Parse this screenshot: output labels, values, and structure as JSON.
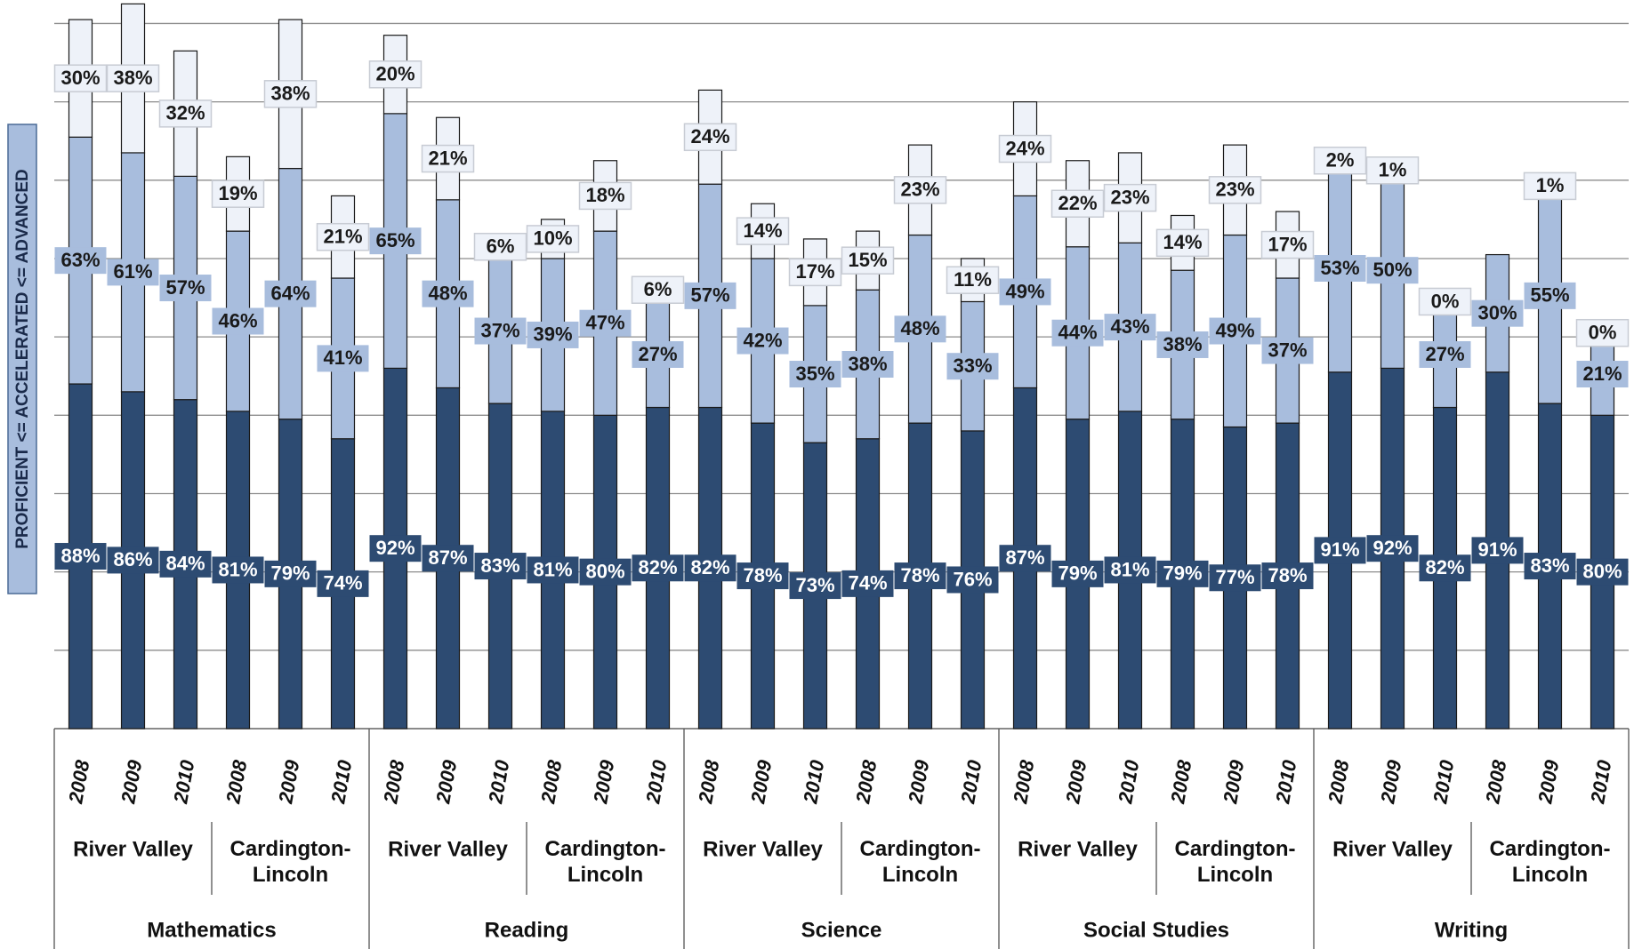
{
  "chart_data": {
    "type": "stacked_bar",
    "y_axis_label": "PROFICIENT <= ACCELERATED <= ADVANCED",
    "categories": [
      "2008",
      "2009",
      "2010",
      "2008",
      "2009",
      "2010",
      "2008",
      "2009",
      "2010",
      "2008",
      "2009",
      "2010",
      "2008",
      "2009",
      "2010",
      "2008",
      "2009",
      "2010",
      "2008",
      "2009",
      "2010",
      "2008",
      "2009",
      "2010",
      "2008",
      "2009",
      "2010",
      "2008",
      "2009",
      "2010"
    ],
    "schools": [
      "River Valley",
      "Cardington-Lincoln",
      "River Valley",
      "Cardington-Lincoln",
      "River Valley",
      "Cardington-Lincoln",
      "River Valley",
      "Cardington-Lincoln",
      "River Valley",
      "Cardington-Lincoln"
    ],
    "subjects": [
      "Mathematics",
      "Reading",
      "Science",
      "Social Studies",
      "Writing"
    ],
    "series": [
      {
        "color": "#2d4b72",
        "label_color": "#ffffff",
        "values": [
          88,
          86,
          84,
          81,
          79,
          74,
          92,
          87,
          83,
          81,
          80,
          82,
          82,
          78,
          73,
          74,
          78,
          76,
          87,
          79,
          81,
          79,
          77,
          78,
          91,
          92,
          82,
          91,
          83,
          80
        ],
        "value_labels": [
          "88%",
          "86%",
          "84%",
          "81%",
          "79%",
          "74%",
          "92%",
          "87%",
          "83%",
          "81%",
          "80%",
          "82%",
          "82%",
          "78%",
          "73%",
          "74%",
          "78%",
          "76%",
          "87%",
          "79%",
          "81%",
          "79%",
          "77%",
          "78%",
          "91%",
          "92%",
          "82%",
          "91%",
          "83%",
          "80%"
        ]
      },
      {
        "color": "#a8bddd",
        "label_color": "#1a1a1a",
        "values": [
          63,
          61,
          57,
          46,
          64,
          41,
          65,
          48,
          37,
          39,
          47,
          27,
          57,
          42,
          35,
          38,
          48,
          33,
          49,
          44,
          43,
          38,
          49,
          37,
          53,
          50,
          27,
          30,
          55,
          21
        ],
        "value_labels": [
          "63%",
          "61%",
          "57%",
          "46%",
          "64%",
          "41%",
          "65%",
          "48%",
          "37%",
          "39%",
          "47%",
          "27%",
          "57%",
          "42%",
          "35%",
          "38%",
          "48%",
          "33%",
          "49%",
          "44%",
          "43%",
          "38%",
          "49%",
          "37%",
          "53%",
          "50%",
          "27%",
          "30%",
          "55%",
          "21%"
        ]
      },
      {
        "color": "#eef2f9",
        "label_color": "#1a1a1a",
        "values": [
          30,
          38,
          32,
          19,
          38,
          21,
          20,
          21,
          6,
          10,
          18,
          6,
          24,
          14,
          17,
          15,
          23,
          11,
          24,
          22,
          23,
          14,
          23,
          17,
          2,
          1,
          0,
          null,
          1,
          0
        ],
        "value_labels": [
          "30%",
          "38%",
          "32%",
          "19%",
          "38%",
          "21%",
          "20%",
          "21%",
          "6%",
          "10%",
          "18%",
          "6%",
          "24%",
          "14%",
          "17%",
          "15%",
          "23%",
          "11%",
          "24%",
          "22%",
          "23%",
          "14%",
          "23%",
          "17%",
          "2%",
          "1%",
          "0%",
          null,
          "1%",
          "0%"
        ]
      }
    ],
    "ylim": [
      0,
      186
    ],
    "yticks": [
      0,
      20,
      40,
      60,
      80,
      100,
      120,
      140,
      160,
      180
    ],
    "grid": true
  }
}
